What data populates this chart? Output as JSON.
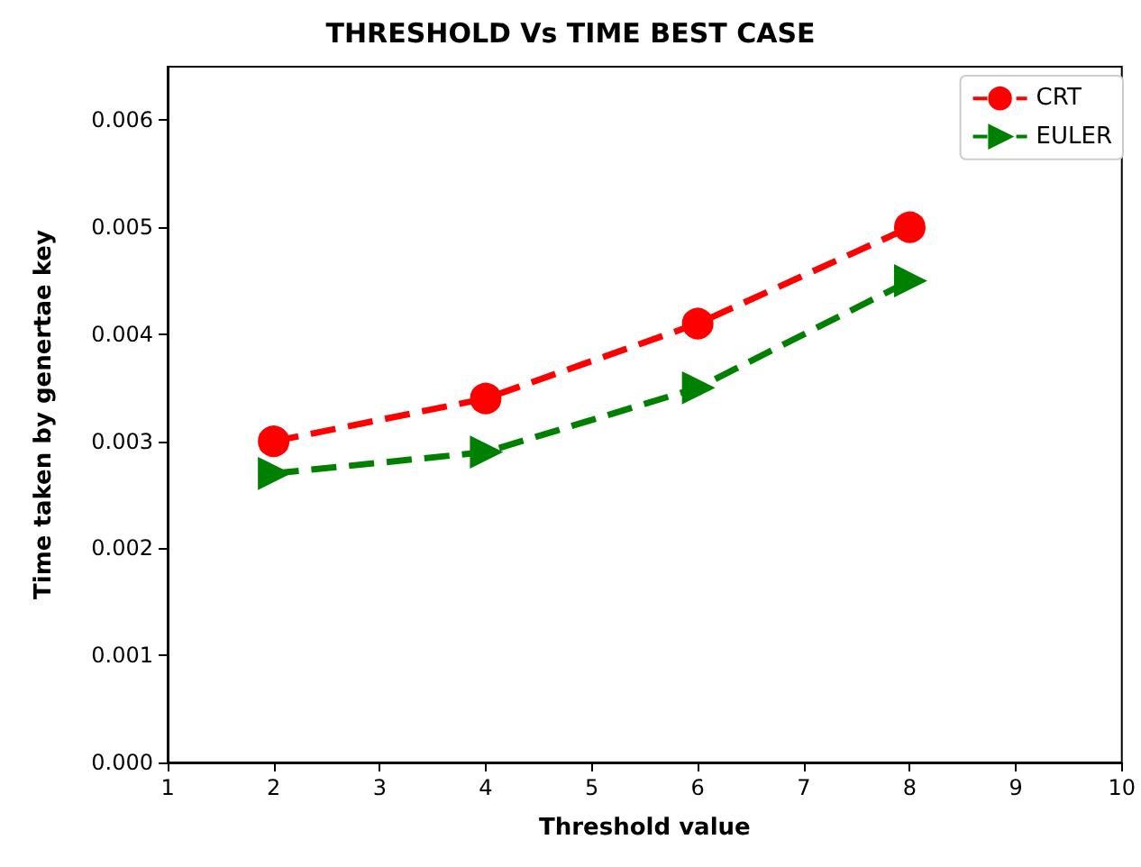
{
  "chart_data": {
    "type": "line",
    "title": "THRESHOLD Vs TIME BEST CASE",
    "xlabel": "Threshold value",
    "ylabel": "Time taken by genertae key",
    "x": [
      2,
      4,
      6,
      8
    ],
    "series": [
      {
        "name": "CRT",
        "color": "#ff0000",
        "values": [
          0.003,
          0.0034,
          0.0041,
          0.005
        ],
        "marker": "circle"
      },
      {
        "name": "EULER",
        "color": "#008000",
        "values": [
          0.0027,
          0.0029,
          0.0035,
          0.0045
        ],
        "marker": "triangle"
      }
    ],
    "xlim": [
      1,
      10
    ],
    "xticks": [
      1,
      2,
      3,
      4,
      5,
      6,
      7,
      8,
      9,
      10
    ],
    "ylim": [
      0,
      0.0065
    ],
    "yticks": [
      {
        "value": 0,
        "label": "0.000"
      },
      {
        "value": 0.001,
        "label": "0.001"
      },
      {
        "value": 0.002,
        "label": "0.002"
      },
      {
        "value": 0.003,
        "label": "0.003"
      },
      {
        "value": 0.004,
        "label": "0.004"
      },
      {
        "value": 0.005,
        "label": "0.005"
      },
      {
        "value": 0.006,
        "label": "0.006"
      }
    ],
    "grid": false,
    "legend": "top right",
    "line_style": "dashed"
  }
}
